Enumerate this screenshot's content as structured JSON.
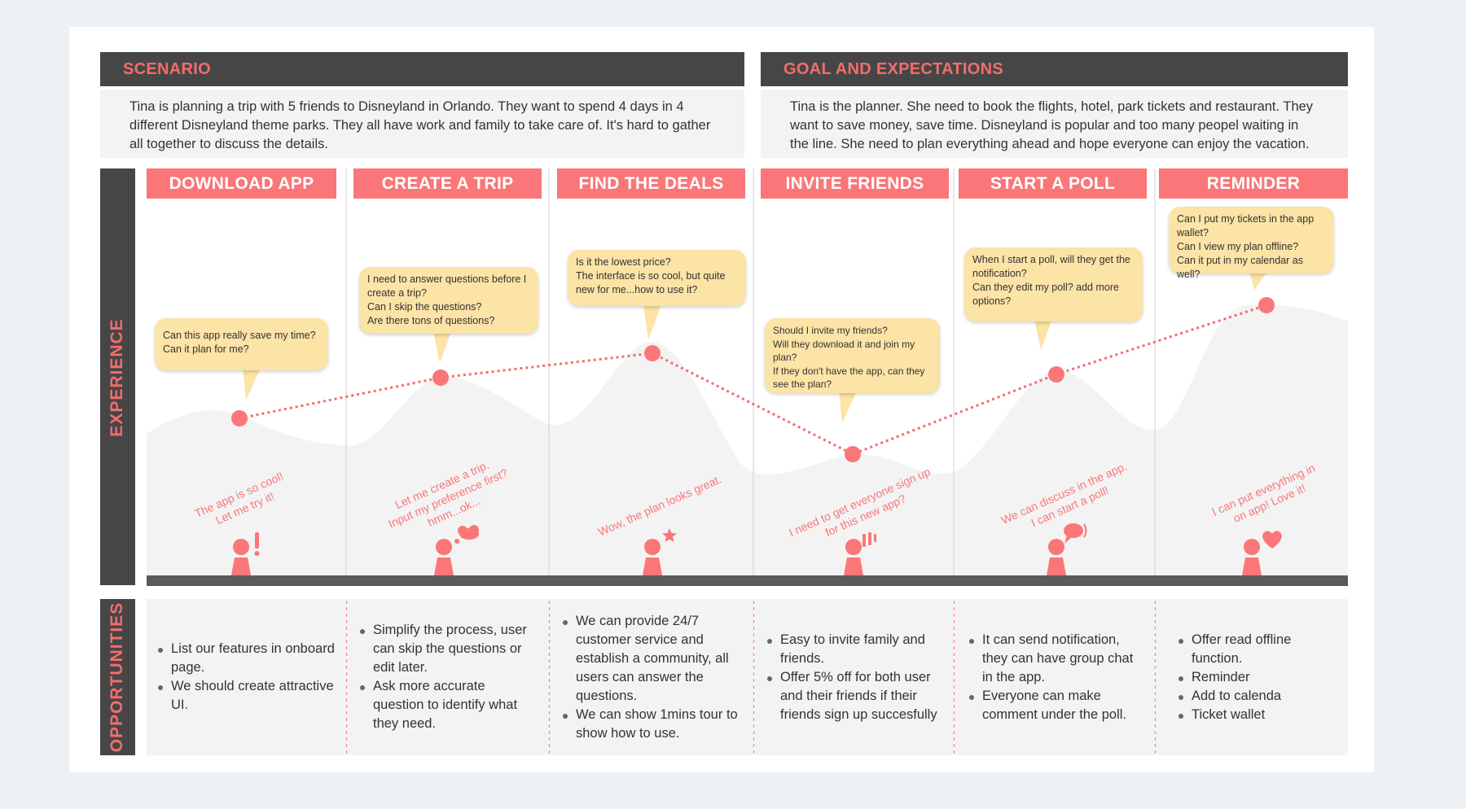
{
  "colors": {
    "accent": "#fa7678",
    "dark": "#464646",
    "bubble": "#fce3a6",
    "panel": "#f3f3f3"
  },
  "scenario": {
    "title": "SCENARIO",
    "text": "Tina is planning a trip with 5 friends to Disneyland in Orlando. They want to spend 4 days in 4 different Disneyland theme parks. They all have work and family to take care of. It's hard to gather all together to discuss the details."
  },
  "goal": {
    "title": "GOAL AND EXPECTATIONS",
    "text": "Tina is the planner. She need to book the flights, hotel, park tickets and restaurant. They want to save money, save time. Disneyland is popular and too many peopel waiting in the line. She need to plan everything ahead and hope everyone can enjoy the vacation."
  },
  "experience_label": "EXPERIENCE",
  "opportunities_label": "OPPORTUNITIES",
  "stages": [
    {
      "title": "DOWNLOAD APP",
      "thoughts": [
        "Can this app really save my time?",
        "Can it plan for me?"
      ],
      "emotion_lines": [
        "The app is so cool!",
        "Let me try it!"
      ],
      "emotion_icon": "exclamation-icon",
      "opportunities": [
        "List our features in onboard page.",
        "We should create attractive UI."
      ]
    },
    {
      "title": "CREATE A TRIP",
      "thoughts": [
        "I need to answer questions before I create a trip?",
        "Can I skip the questions?",
        "Are there tons of questions?"
      ],
      "emotion_lines": [
        "Let me create a trip.",
        "Input my preference first?",
        "hmm...ok..."
      ],
      "emotion_icon": "thought-cloud-icon",
      "opportunities": [
        "Simplify the process, user can skip the questions or edit later.",
        "Ask more accurate question to identify what they need."
      ]
    },
    {
      "title": "FIND THE DEALS",
      "thoughts": [
        "Is it the lowest price?",
        "The interface is so cool, but quite new for me...how to use it?"
      ],
      "emotion_lines": [
        "Wow, the plan looks great."
      ],
      "emotion_icon": "star-icon",
      "opportunities": [
        "We can provide 24/7 customer service and establish a community, all users can answer the questions.",
        "We can show 1mins tour to show how to use."
      ]
    },
    {
      "title": "INVITE FRIENDS",
      "thoughts": [
        "Should I invite my friends?",
        "Will they download it and join my plan?",
        "If they don't have the app, can they see the plan?"
      ],
      "emotion_lines": [
        "I need to get everyone sign up",
        "for this new app?"
      ],
      "emotion_icon": "double-exclamation-icon",
      "opportunities": [
        "Easy to invite family and friends.",
        "Offer 5% off for both user and their friends if their friends sign up succesfully"
      ]
    },
    {
      "title": "START A POLL",
      "thoughts": [
        "When I start a poll, will they get the notification?",
        "Can they edit my poll? add more options?"
      ],
      "emotion_lines": [
        "We can discuss in the app.",
        "I can start a poll!"
      ],
      "emotion_icon": "speech-bubble-icon",
      "opportunities": [
        "It can send notification, they can have group chat in the app.",
        "Everyone can make comment under the poll."
      ]
    },
    {
      "title": "REMINDER",
      "thoughts": [
        "Can I put my tickets in the app wallet?",
        "Can I view my plan offline?",
        "Can it put in my calendar as well?"
      ],
      "emotion_lines": [
        "I can put everything in",
        "on app! Love it!"
      ],
      "emotion_icon": "heart-icon",
      "opportunities": [
        "Offer read offline function.",
        "Reminder",
        "Add to calenda",
        "Ticket wallet"
      ]
    }
  ]
}
